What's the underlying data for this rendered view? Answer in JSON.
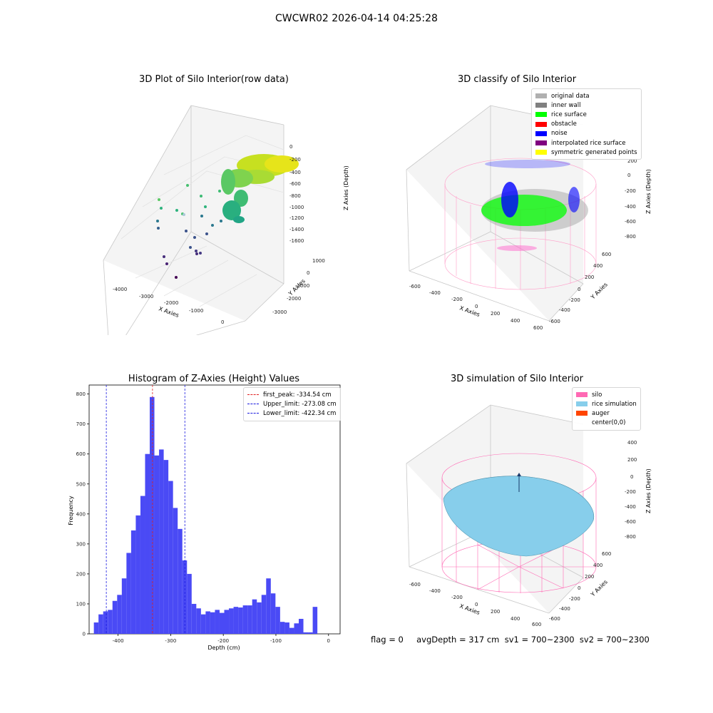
{
  "suptitle": "CWCWR02 2026-04-14 04:25:28",
  "footer": "flag = 0     avgDepth = 317 cm  sv1 = 700~2300  sv2 = 700~2300",
  "colors": {
    "histogram_bar": "#4a4af5",
    "peak_line": "#e02020",
    "upper_line": "#1a1ae0",
    "lower_line": "#1a1ae0",
    "silo": "#ff69b4",
    "rice_simulation": "#87ceeb"
  },
  "panel1": {
    "title": "3D Plot of Silo Interior(row data)",
    "xlabel": "X Axies",
    "ylabel": "Y Axies",
    "zlabel": "Z Axies (Depth)",
    "x_ticks": [
      "-4000",
      "-3000",
      "-2000",
      "-1000",
      "0"
    ],
    "y_ticks": [
      "1000",
      "0",
      "-1000",
      "-2000",
      "-3000"
    ],
    "z_ticks": [
      "0",
      "-200",
      "-400",
      "-600",
      "-800",
      "-1000",
      "-1200",
      "-1400",
      "-1600"
    ]
  },
  "panel2": {
    "title": "3D classify of Silo Interior",
    "xlabel": "X Axies",
    "ylabel": "Y Axies",
    "zlabel": "Z Axies (Depth)",
    "x_ticks": [
      "-600",
      "-400",
      "-200",
      "0",
      "200",
      "400",
      "600"
    ],
    "y_ticks": [
      "600",
      "400",
      "200",
      "0",
      "-200",
      "-400",
      "-600"
    ],
    "z_ticks": [
      "200",
      "0",
      "-200",
      "-400",
      "-600",
      "-800"
    ],
    "legend": [
      {
        "label": "original data",
        "color": "#b0b0b0"
      },
      {
        "label": "inner wall",
        "color": "#808080"
      },
      {
        "label": "rice surface",
        "color": "#00ff00"
      },
      {
        "label": "obstacle",
        "color": "#ff0000"
      },
      {
        "label": "noise",
        "color": "#0000ff"
      },
      {
        "label": "interpolated rice surface",
        "color": "#800080"
      },
      {
        "label": "symmetric generated points",
        "color": "#ffff00"
      }
    ]
  },
  "panel4": {
    "title": "3D simulation of Silo Interior",
    "xlabel": "X Axies",
    "ylabel": "Y Axies",
    "zlabel": "Z Axies (Depth)",
    "x_ticks": [
      "-600",
      "-400",
      "-200",
      "0",
      "200",
      "400",
      "600"
    ],
    "y_ticks": [
      "600",
      "400",
      "200",
      "0",
      "-200",
      "-400",
      "-600"
    ],
    "z_ticks": [
      "400",
      "200",
      "0",
      "-200",
      "-400",
      "-600",
      "-800"
    ],
    "legend": [
      {
        "label": "silo",
        "color": "#ff69b4"
      },
      {
        "label": "rice simulation",
        "color": "#87ceeb"
      },
      {
        "label": "auger",
        "color": "#ff4500"
      },
      {
        "label": "center(0,0)",
        "color": ""
      }
    ]
  },
  "chart_data": {
    "type": "bar",
    "title": "Histogram of Z-Axies (Height) Values",
    "xlabel": "Depth (cm)",
    "ylabel": "Frequency",
    "xlim": [
      -455,
      22
    ],
    "ylim": [
      0,
      830
    ],
    "x_ticks": [
      -400,
      -300,
      -200,
      -100,
      0
    ],
    "y_ticks": [
      0,
      100,
      200,
      300,
      400,
      500,
      600,
      700,
      800
    ],
    "bin_start": -446,
    "bin_width": 8.85,
    "values": [
      38,
      65,
      75,
      80,
      110,
      130,
      185,
      270,
      345,
      395,
      460,
      600,
      790,
      595,
      615,
      580,
      510,
      420,
      350,
      245,
      200,
      100,
      85,
      65,
      75,
      72,
      80,
      70,
      80,
      85,
      90,
      88,
      95,
      95,
      115,
      105,
      130,
      185,
      135,
      90,
      40,
      38,
      20,
      35,
      50,
      5,
      5,
      90
    ],
    "vlines": [
      {
        "label": "first_peak: -334.54 cm",
        "x": -334.54,
        "color": "#e02020"
      },
      {
        "label": "Upper_limit: -273.08 cm",
        "x": -273.08,
        "color": "#1a1ae0"
      },
      {
        "label": "Lower_limit: -422.34 cm",
        "x": -422.34,
        "color": "#1a1ae0"
      }
    ]
  }
}
